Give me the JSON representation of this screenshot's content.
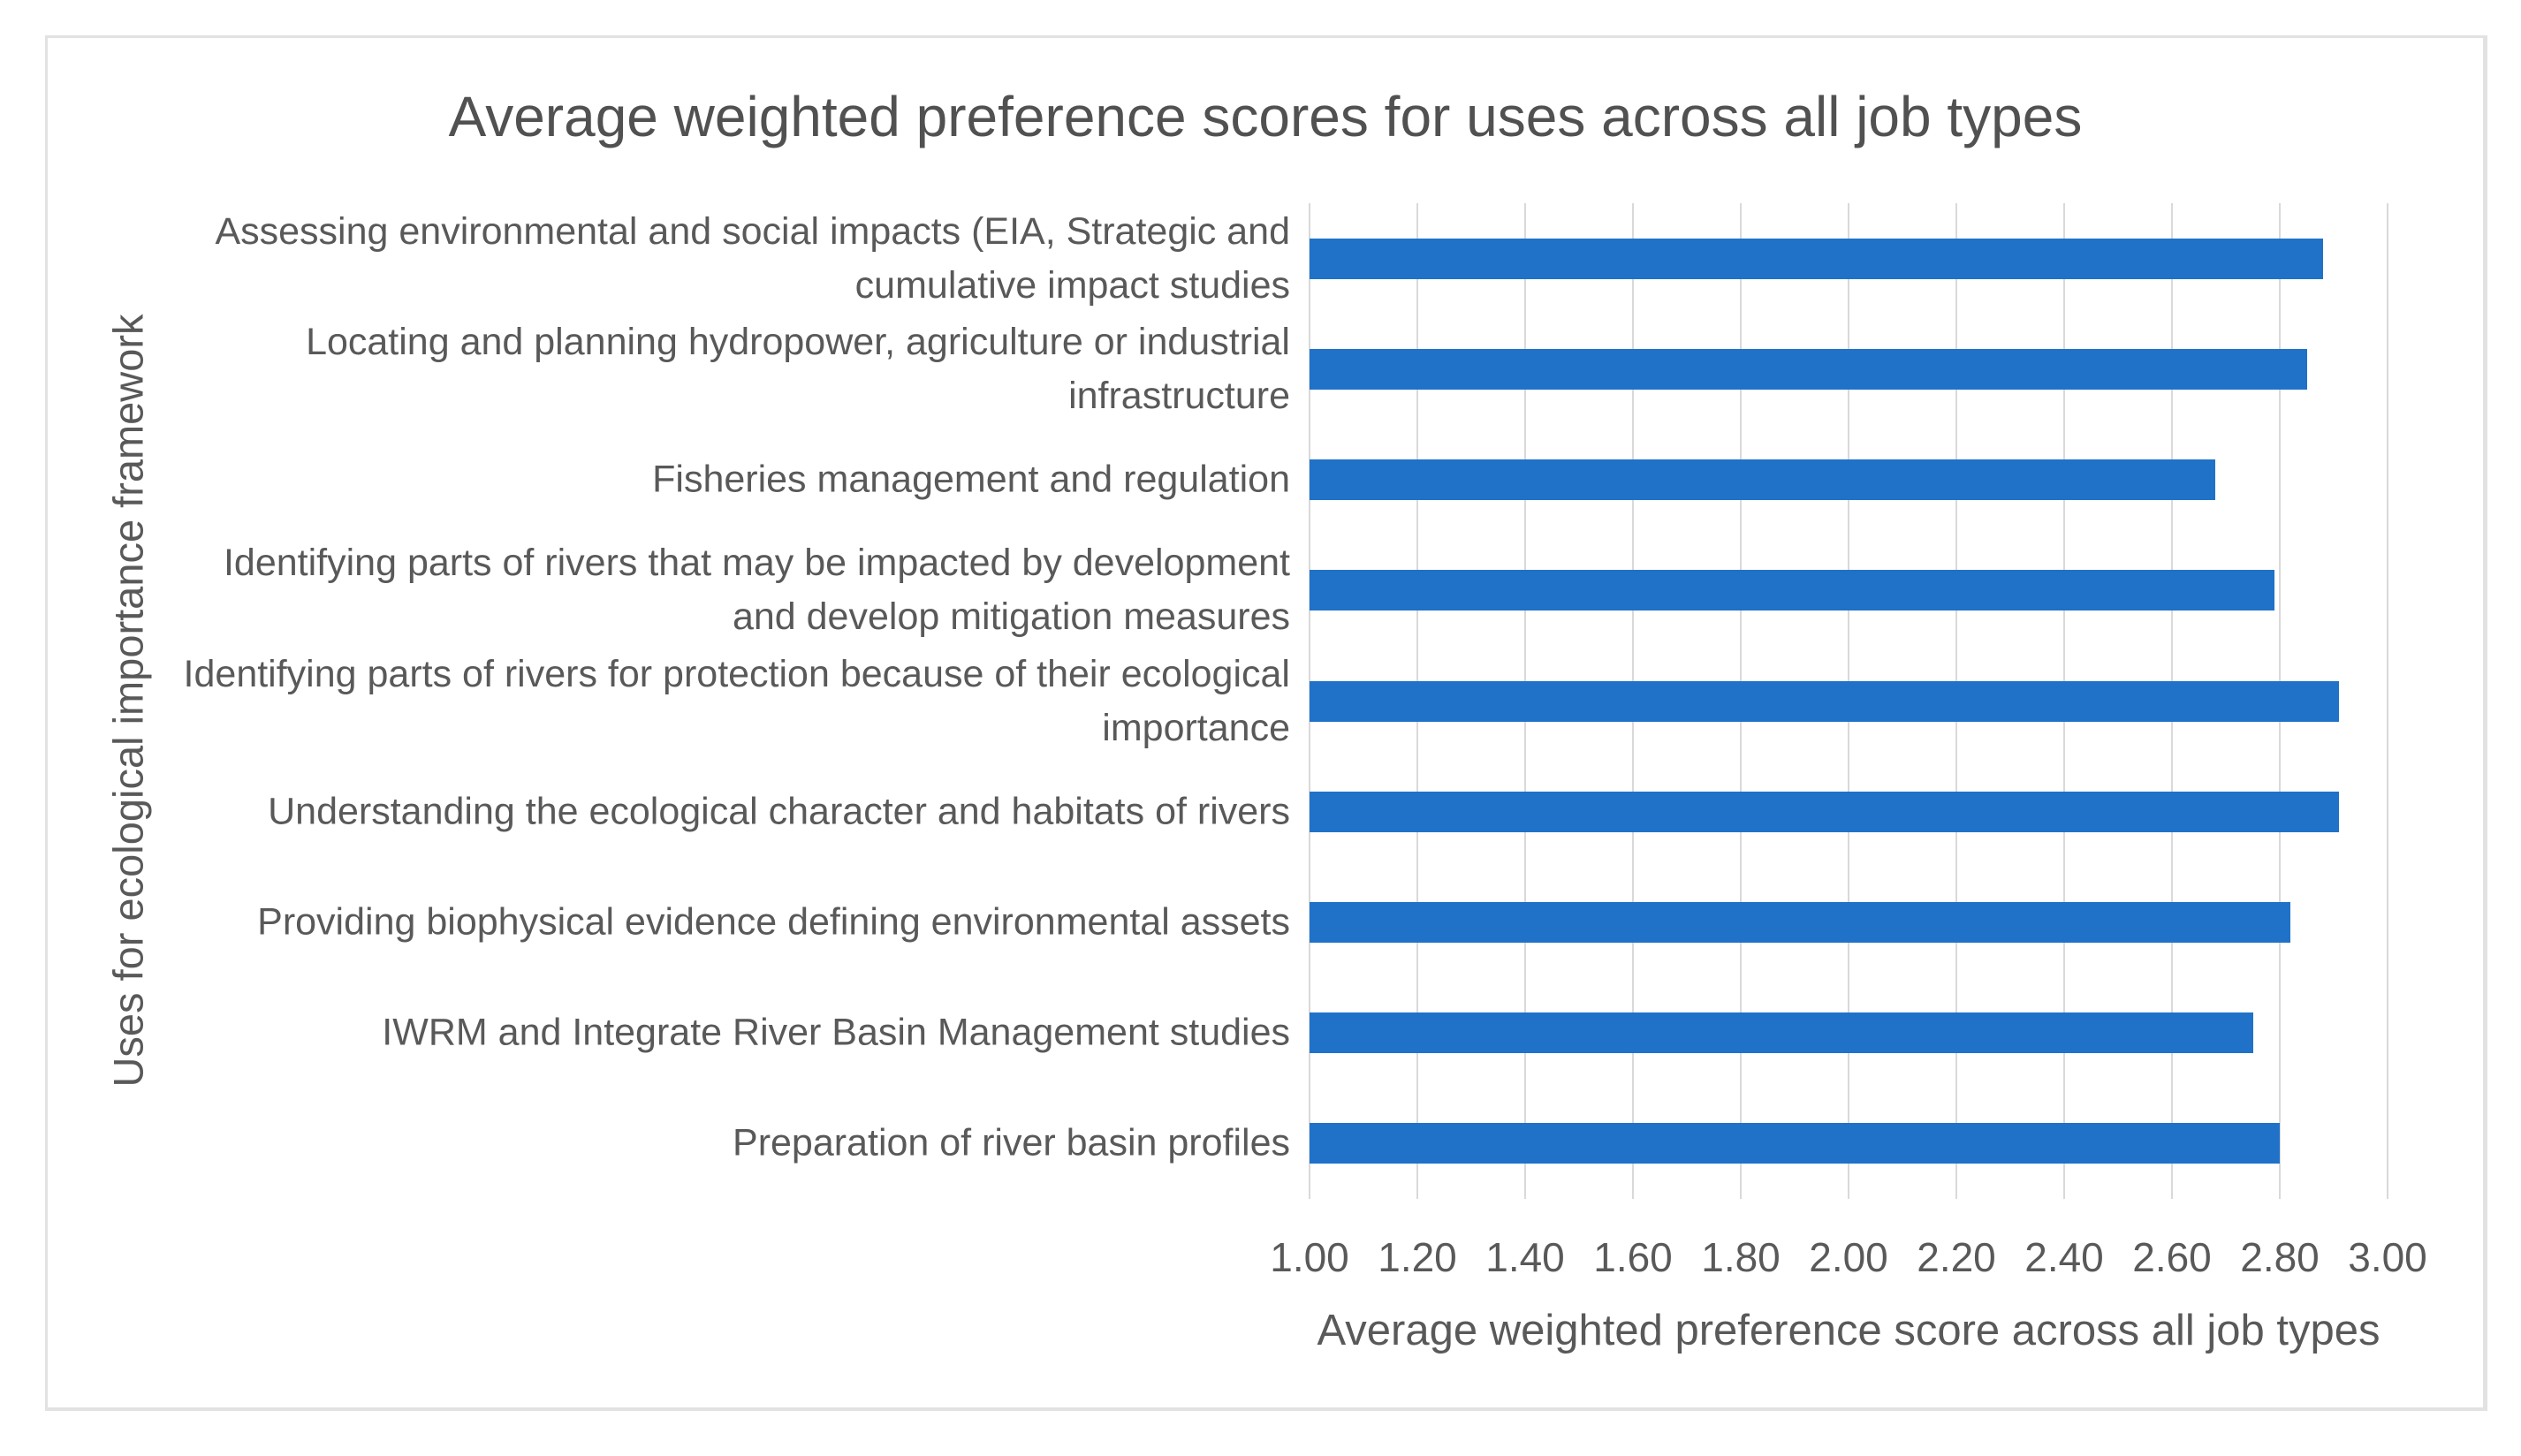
{
  "title": "Average weighted preference scores for uses across all job types",
  "chart_data": {
    "type": "bar",
    "orientation": "horizontal",
    "title": "Average weighted preference scores for uses across all job types",
    "xlabel": "Average weighted preference score across all job types",
    "ylabel": "Uses for ecological importance framework",
    "xlim": [
      1.0,
      3.0
    ],
    "xtick_labels": [
      "1.00",
      "1.20",
      "1.40",
      "1.60",
      "1.80",
      "2.00",
      "2.20",
      "2.40",
      "2.60",
      "2.80",
      "3.00"
    ],
    "grid": true,
    "legend": false,
    "categories": [
      "Assessing environmental and social impacts (EIA, Strategic and cumulative impact studies",
      "Locating and planning hydropower, agriculture or industrial infrastructure",
      "Fisheries management and regulation",
      "Identifying parts of rivers that may be impacted by development and develop mitigation measures",
      "Identifying parts of rivers for protection because of their ecological importance",
      "Understanding the ecological character and habitats of rivers",
      "Providing biophysical evidence defining environmental assets",
      "IWRM and Integrate River Basin Management studies",
      "Preparation of river basin profiles"
    ],
    "values": [
      2.88,
      2.85,
      2.68,
      2.79,
      2.91,
      2.91,
      2.82,
      2.75,
      2.8
    ],
    "bar_color": "#1f72c8",
    "gridline_color": "#d9d9d9",
    "text_color": "#595959",
    "title_color": "#515151"
  }
}
